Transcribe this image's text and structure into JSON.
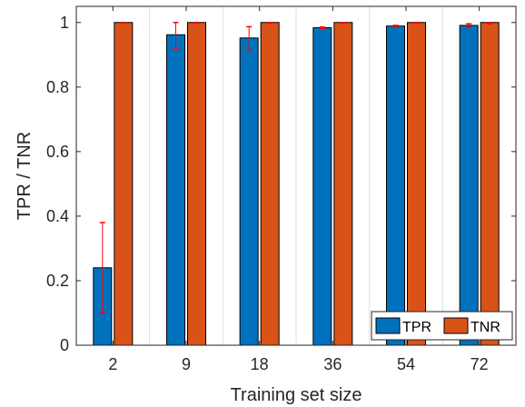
{
  "chart_data": {
    "type": "bar",
    "categories": [
      "2",
      "9",
      "18",
      "36",
      "54",
      "72"
    ],
    "xlabel": "Training set size",
    "ylabel": "TPR / TNR",
    "ylim": [
      0,
      1.05
    ],
    "yticks": [
      0,
      0.2,
      0.4,
      0.6,
      0.8,
      1
    ],
    "ytick_labels": [
      "0",
      "0.2",
      "0.4",
      "0.6",
      "0.8",
      "1"
    ],
    "grid": "x-only",
    "legend_position": "bottom-right",
    "series": [
      {
        "name": "TPR",
        "color": "#0072BD",
        "values": [
          0.24,
          0.962,
          0.952,
          0.984,
          0.989,
          0.991
        ],
        "error_low": [
          0.1,
          0.92,
          0.915,
          0.982,
          0.986,
          0.985
        ],
        "error_high": [
          0.38,
          1.0,
          0.987,
          0.986,
          0.991,
          0.996
        ]
      },
      {
        "name": "TNR",
        "color": "#D95319",
        "values": [
          1.0,
          1.0,
          1.0,
          1.0,
          1.0,
          1.0
        ],
        "error_low": [
          0.998,
          0.998,
          0.998,
          0.998,
          0.998,
          0.996
        ],
        "error_high": [
          1.0,
          1.0,
          1.0,
          1.0,
          1.0,
          1.0
        ]
      }
    ],
    "error_bar_color": "#FF0000"
  }
}
